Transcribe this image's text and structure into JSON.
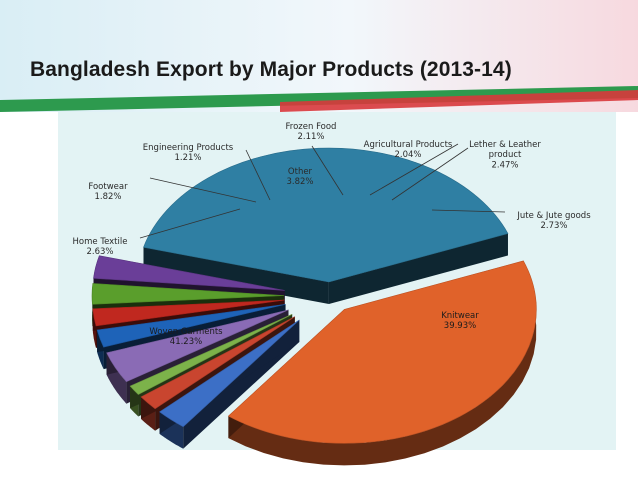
{
  "slide": {
    "title": "Bangladesh Export by Major Products (2013-14)",
    "colors": {
      "band_green": "#2d9a4e",
      "band_red": "#d8383c",
      "panel": "#e3f3f4"
    }
  },
  "chart_data": {
    "type": "pie",
    "title": "Bangladesh Export by Major Products (2013-14)",
    "unit": "%",
    "slices": [
      {
        "label": "Knitwear",
        "value": 39.93,
        "display": "39.93%",
        "color": "#2f7fa3"
      },
      {
        "label": "Woven Garments",
        "value": 41.23,
        "display": "41.23%",
        "color": "#e0622a"
      },
      {
        "label": "Home Textile",
        "value": 2.63,
        "display": "2.63%",
        "color": "#3c6fc6"
      },
      {
        "label": "Footwear",
        "value": 1.82,
        "display": "1.82%",
        "color": "#c9452f"
      },
      {
        "label": "Engineering Products",
        "value": 1.21,
        "display": "1.21%",
        "color": "#7cb24a"
      },
      {
        "label": "Other",
        "value": 3.82,
        "display": "3.82%",
        "color": "#8a6bb5"
      },
      {
        "label": "Frozen Food",
        "value": 2.11,
        "display": "2.11%",
        "color": "#1e63b8"
      },
      {
        "label": "Agricultural Products",
        "value": 2.04,
        "display": "2.04%",
        "color": "#c0281f"
      },
      {
        "label": "Lether & Leather product",
        "value": 2.47,
        "display": "2.47%",
        "color": "#5a9e2c"
      },
      {
        "label": "Jute & Jute goods",
        "value": 2.73,
        "display": "2.73%",
        "color": "#6a3e98"
      }
    ]
  }
}
